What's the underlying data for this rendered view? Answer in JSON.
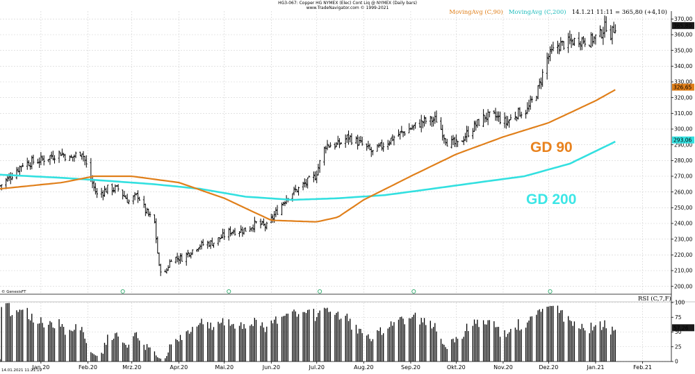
{
  "header": {
    "title": "HG3-067:  Copper HG NYMEX (Elec) Cont Liq @ NYMEX  (Daily bars)",
    "subtitle": "www.TradeNavigator.com © 1999-2021"
  },
  "legend": {
    "ma90": "MovingAvg (C,90)",
    "ma200": "MovingAvg (C,200)",
    "quote": "14.1.21 11:11 = 365,80 (+4,10)"
  },
  "annotations": {
    "gd90": "GD 90",
    "gd200": "GD 200"
  },
  "rsi_label": "RSI (C,7,F)",
  "footer": {
    "genesis": "© GenesisFT",
    "timestamp": "14.01.2021  11:21:19"
  },
  "colors": {
    "price": "#000000",
    "ma90": "#E07F1A",
    "ma200": "#33E0E0",
    "ann90": "#E8821E",
    "ann200": "#3DE6E6",
    "grid": "#d0d0d0",
    "badge_dark": "#1a1a1a"
  },
  "chart_data": [
    {
      "type": "ohlc",
      "ylim": [
        195,
        375
      ],
      "yticks": [
        "200,00",
        "210,00",
        "220,00",
        "230,00",
        "240,00",
        "250,00",
        "260,00",
        "270,00",
        "280,00",
        "290,00",
        "300,00",
        "310,00",
        "320,00",
        "330,00",
        "340,00",
        "350,00",
        "360,00",
        "370,00"
      ],
      "ytick_values": [
        200,
        210,
        220,
        230,
        240,
        250,
        260,
        270,
        280,
        290,
        300,
        310,
        320,
        330,
        340,
        350,
        360,
        370
      ],
      "x_months": [
        "Jan.20",
        "Feb.20",
        "Mrz.20",
        "Apr.20",
        "Mai.20",
        "Jun.20",
        "Jul.20",
        "Aug.20",
        "Sep.20",
        "Okt.20",
        "Nov.20",
        "Dez.20",
        "Jan.21",
        "Feb.21"
      ],
      "x_dates": [
        "2020-01-01",
        "2020-02-01",
        "2020-03-01",
        "2020-04-01",
        "2020-05-01",
        "2020-06-01",
        "2020-07-01",
        "2020-08-01",
        "2020-09-01",
        "2020-10-01",
        "2020-11-01",
        "2020-12-01",
        "2021-01-01",
        "2021-02-01"
      ],
      "x_range": [
        "2019-12-05",
        "2021-02-20"
      ],
      "price_keypoints": [
        [
          "2019-12-05",
          264
        ],
        [
          "2019-12-12",
          270
        ],
        [
          "2019-12-20",
          278
        ],
        [
          "2019-12-31",
          280
        ],
        [
          "2020-01-14",
          285
        ],
        [
          "2020-01-20",
          281
        ],
        [
          "2020-01-28",
          286
        ],
        [
          "2020-02-03",
          268
        ],
        [
          "2020-02-07",
          258
        ],
        [
          "2020-02-14",
          262
        ],
        [
          "2020-02-21",
          262
        ],
        [
          "2020-02-28",
          254
        ],
        [
          "2020-03-05",
          258
        ],
        [
          "2020-03-10",
          248
        ],
        [
          "2020-03-16",
          240
        ],
        [
          "2020-03-19",
          212
        ],
        [
          "2020-03-23",
          208
        ],
        [
          "2020-03-27",
          218
        ],
        [
          "2020-04-03",
          218
        ],
        [
          "2020-04-14",
          226
        ],
        [
          "2020-04-24",
          228
        ],
        [
          "2020-05-05",
          235
        ],
        [
          "2020-05-15",
          236
        ],
        [
          "2020-05-22",
          240
        ],
        [
          "2020-05-29",
          238
        ],
        [
          "2020-06-05",
          248
        ],
        [
          "2020-06-12",
          258
        ],
        [
          "2020-06-19",
          262
        ],
        [
          "2020-06-30",
          270
        ],
        [
          "2020-07-07",
          290
        ],
        [
          "2020-07-15",
          290
        ],
        [
          "2020-07-22",
          295
        ],
        [
          "2020-07-31",
          290
        ],
        [
          "2020-08-07",
          285
        ],
        [
          "2020-08-14",
          290
        ],
        [
          "2020-08-21",
          295
        ],
        [
          "2020-08-31",
          300
        ],
        [
          "2020-09-10",
          305
        ],
        [
          "2020-09-18",
          306
        ],
        [
          "2020-09-25",
          292
        ],
        [
          "2020-10-02",
          290
        ],
        [
          "2020-10-09",
          298
        ],
        [
          "2020-10-20",
          308
        ],
        [
          "2020-10-27",
          308
        ],
        [
          "2020-11-03",
          304
        ],
        [
          "2020-11-10",
          310
        ],
        [
          "2020-11-17",
          312
        ],
        [
          "2020-11-24",
          325
        ],
        [
          "2020-11-30",
          345
        ],
        [
          "2020-12-07",
          353
        ],
        [
          "2020-12-14",
          355
        ],
        [
          "2020-12-21",
          357
        ],
        [
          "2020-12-28",
          356
        ],
        [
          "2021-01-04",
          360
        ],
        [
          "2021-01-08",
          366
        ],
        [
          "2021-01-11",
          360
        ],
        [
          "2021-01-14",
          365.8
        ]
      ],
      "ma90_keypoints": [
        [
          "2019-12-05",
          262
        ],
        [
          "2020-01-15",
          266
        ],
        [
          "2020-02-05",
          270
        ],
        [
          "2020-03-01",
          270
        ],
        [
          "2020-04-01",
          266
        ],
        [
          "2020-05-01",
          256
        ],
        [
          "2020-06-01",
          242
        ],
        [
          "2020-07-01",
          241
        ],
        [
          "2020-07-15",
          244
        ],
        [
          "2020-08-01",
          255
        ],
        [
          "2020-09-01",
          270
        ],
        [
          "2020-10-01",
          284
        ],
        [
          "2020-11-01",
          295
        ],
        [
          "2020-12-01",
          304
        ],
        [
          "2021-01-01",
          318
        ],
        [
          "2021-01-14",
          325
        ]
      ],
      "ma200_keypoints": [
        [
          "2019-12-05",
          271
        ],
        [
          "2020-01-15",
          269
        ],
        [
          "2020-02-15",
          267
        ],
        [
          "2020-03-15",
          265
        ],
        [
          "2020-04-15",
          262
        ],
        [
          "2020-05-15",
          257
        ],
        [
          "2020-06-15",
          255
        ],
        [
          "2020-07-15",
          256
        ],
        [
          "2020-08-15",
          258
        ],
        [
          "2020-09-15",
          262
        ],
        [
          "2020-10-15",
          266
        ],
        [
          "2020-11-15",
          270
        ],
        [
          "2020-12-15",
          278
        ],
        [
          "2021-01-14",
          292
        ]
      ],
      "last_value": "365,80",
      "ma90_last": "326,65",
      "ma200_last": "293,06"
    },
    {
      "type": "histogram",
      "name": "RSI (C,7,F)",
      "ylim": [
        0,
        100
      ],
      "yticks": [
        "0",
        "25",
        "50",
        "75",
        "100"
      ],
      "ytick_values": [
        0,
        25,
        50,
        75,
        100
      ],
      "last_value": "57,26"
    }
  ]
}
